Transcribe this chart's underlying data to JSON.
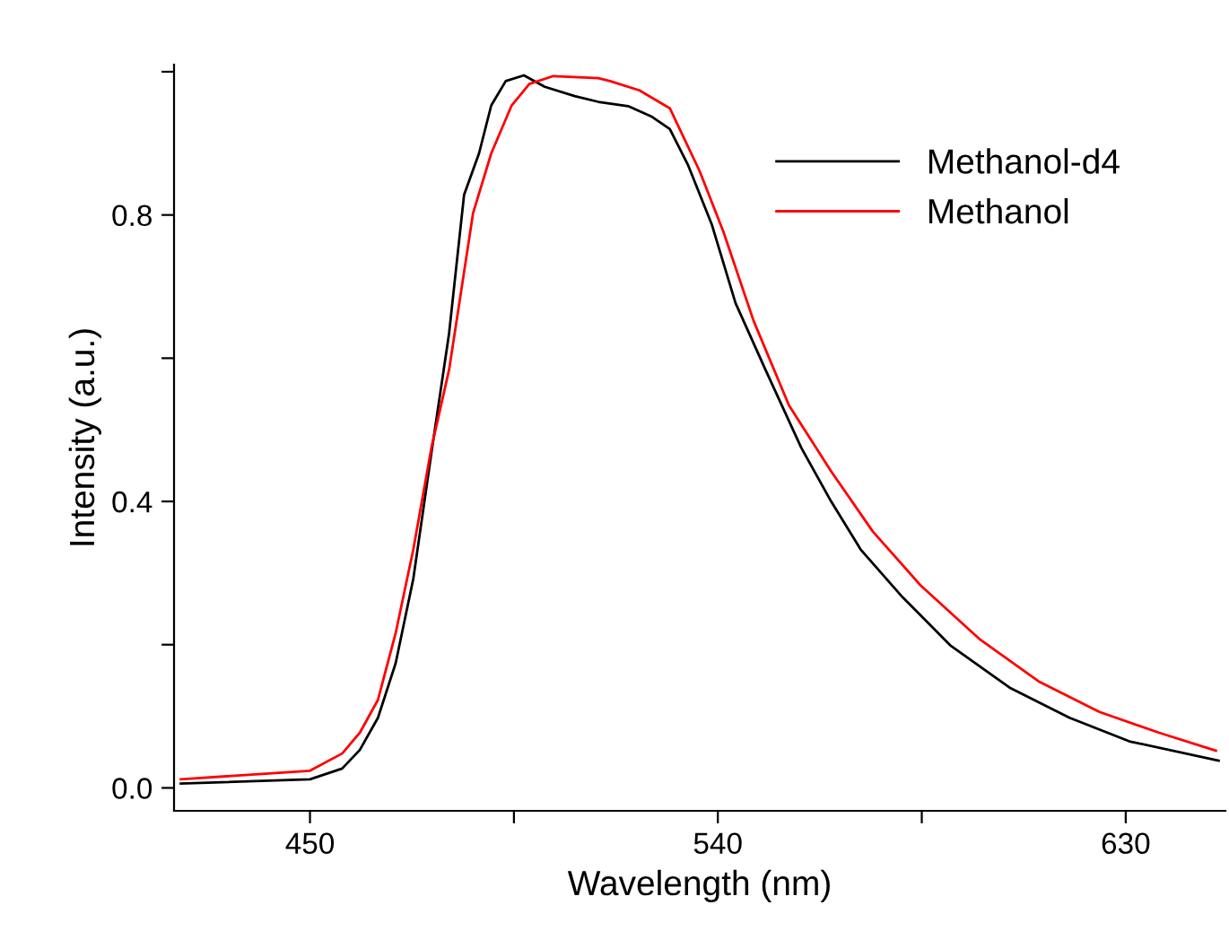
{
  "chart_data": {
    "type": "line",
    "xlabel": "Wavelength (nm)",
    "ylabel": "Intensity (a.u.)",
    "xlim": [
      420,
      652
    ],
    "ylim": [
      -0.032,
      1.01
    ],
    "xticks": [
      450,
      {
        "value": 495,
        "label": null
      },
      540,
      {
        "value": 585,
        "label": null
      },
      630
    ],
    "yticks": [
      {
        "value": 0.0,
        "label": "0.0"
      },
      {
        "value": 0.2,
        "label": null
      },
      0.4,
      {
        "value": 0.6,
        "label": null
      },
      0.8,
      {
        "value": 1.0,
        "label": null
      }
    ],
    "grid": false,
    "legend": "top right",
    "marker": "none",
    "line_style": "solid",
    "series": [
      {
        "name": "Methanol-d4",
        "color": "#000000",
        "x": [
          421.5,
          450,
          457.1,
          461,
          465,
          468.9,
          472.8,
          476.8,
          480.7,
          484,
          487.3,
          490,
          493.2,
          497.2,
          501.8,
          508.4,
          513.6,
          520.2,
          525.5,
          529.4,
          533.4,
          538.7,
          543.9,
          550.5,
          558.4,
          565,
          571.5,
          580.8,
          591.3,
          604.4,
          617.6,
          630.8,
          650.5
        ],
        "values": [
          0.006,
          0.012,
          0.027,
          0.053,
          0.098,
          0.174,
          0.292,
          0.468,
          0.635,
          0.828,
          0.886,
          0.953,
          0.987,
          0.995,
          0.979,
          0.966,
          0.958,
          0.952,
          0.937,
          0.92,
          0.87,
          0.786,
          0.677,
          0.584,
          0.475,
          0.4,
          0.333,
          0.266,
          0.199,
          0.14,
          0.098,
          0.065,
          0.038
        ]
      },
      {
        "name": "Methanol",
        "color": "#ff0000",
        "x": [
          421.5,
          450,
          457.1,
          461,
          465,
          468.9,
          472.8,
          476.8,
          480.7,
          486,
          490,
          494.5,
          498.4,
          503.7,
          513.6,
          516.2,
          522.7,
          529.4,
          536,
          541.2,
          547.9,
          555.7,
          565,
          574.2,
          584.7,
          597.9,
          611,
          624.2,
          637.4,
          649.9
        ],
        "values": [
          0.012,
          0.024,
          0.048,
          0.077,
          0.123,
          0.216,
          0.333,
          0.475,
          0.584,
          0.803,
          0.886,
          0.953,
          0.983,
          0.994,
          0.991,
          0.987,
          0.974,
          0.949,
          0.861,
          0.777,
          0.652,
          0.534,
          0.442,
          0.358,
          0.283,
          0.207,
          0.148,
          0.106,
          0.077,
          0.052
        ]
      }
    ]
  }
}
